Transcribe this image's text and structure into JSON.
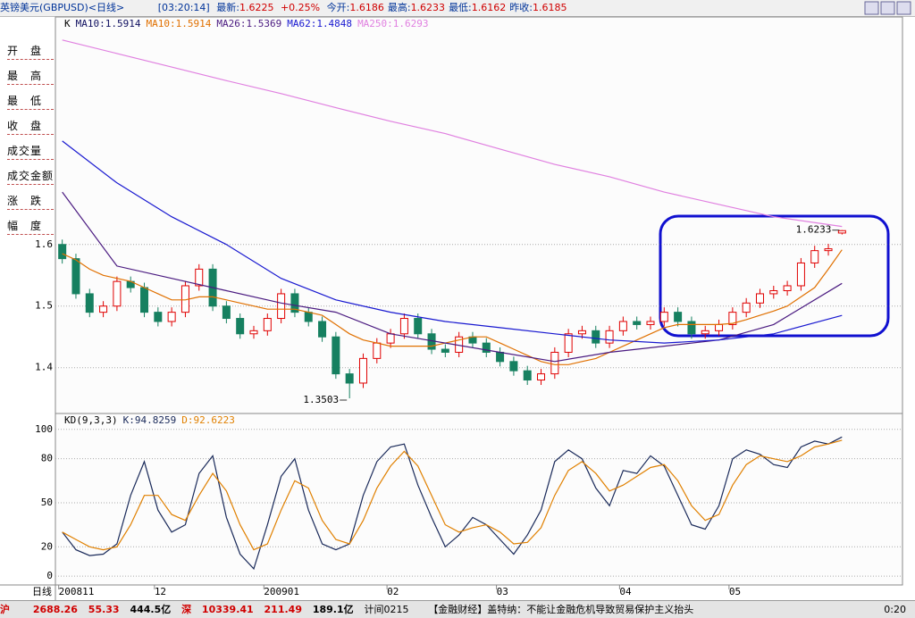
{
  "header": {
    "title": "英镑美元(GBPUSD)<日线>",
    "time": "[03:20:14]",
    "latest_label": "最新:",
    "latest": "1.6225",
    "change": "+0.25%",
    "fields": [
      {
        "label": "今开:",
        "value": "1.6186"
      },
      {
        "label": "最高:",
        "value": "1.6233"
      },
      {
        "label": "最低:",
        "value": "1.6162"
      },
      {
        "label": "昨收:",
        "value": "1.6185"
      }
    ]
  },
  "sidebar": [
    "开　盘",
    "最　高",
    "最　低",
    "收　盘",
    "成交量",
    "成交金额",
    "涨　跌",
    "幅　度"
  ],
  "x_axis_title": "日线",
  "chart_data": [
    {
      "type": "candlestick",
      "legend_items": [
        "K",
        "MA10:1.5914"
      ],
      "legend_colors": [
        "#000000",
        "#101060"
      ],
      "categories": [
        "200811",
        null,
        null,
        null,
        null,
        null,
        null,
        "12",
        null,
        null,
        null,
        null,
        null,
        null,
        null,
        "200901",
        null,
        null,
        null,
        null,
        null,
        null,
        null,
        null,
        "02",
        null,
        null,
        null,
        null,
        null,
        null,
        null,
        "03",
        null,
        null,
        null,
        null,
        null,
        null,
        null,
        null,
        "04",
        null,
        null,
        null,
        null,
        null,
        null,
        null,
        "05",
        null,
        null,
        null,
        null,
        null,
        null,
        null,
        null
      ],
      "open": [
        1.6,
        1.577,
        1.52,
        1.49,
        1.5,
        1.54,
        1.53,
        1.49,
        1.475,
        1.49,
        1.533,
        1.56,
        1.5,
        1.48,
        1.455,
        1.46,
        1.48,
        1.52,
        1.49,
        1.475,
        1.45,
        1.39,
        1.375,
        1.415,
        1.44,
        1.455,
        1.48,
        1.455,
        1.43,
        1.425,
        1.45,
        1.44,
        1.425,
        1.41,
        1.395,
        1.38,
        1.39,
        1.425,
        1.455,
        1.46,
        1.44,
        1.46,
        1.475,
        1.47,
        1.475,
        1.49,
        1.475,
        1.455,
        1.46,
        1.47,
        1.49,
        1.505,
        1.52,
        1.525,
        1.533,
        1.57,
        1.59,
        1.6186
      ],
      "high": [
        1.608,
        1.585,
        1.528,
        1.508,
        1.548,
        1.548,
        1.538,
        1.498,
        1.498,
        1.541,
        1.568,
        1.568,
        1.508,
        1.488,
        1.468,
        1.488,
        1.528,
        1.528,
        1.498,
        1.483,
        1.458,
        1.398,
        1.423,
        1.448,
        1.463,
        1.488,
        1.488,
        1.463,
        1.438,
        1.458,
        1.458,
        1.448,
        1.433,
        1.418,
        1.403,
        1.398,
        1.433,
        1.463,
        1.468,
        1.468,
        1.468,
        1.483,
        1.483,
        1.483,
        1.498,
        1.498,
        1.483,
        1.468,
        1.478,
        1.498,
        1.513,
        1.528,
        1.533,
        1.541,
        1.578,
        1.598,
        1.601,
        1.6233
      ],
      "low": [
        1.569,
        1.512,
        1.482,
        1.482,
        1.492,
        1.522,
        1.482,
        1.467,
        1.467,
        1.482,
        1.525,
        1.492,
        1.472,
        1.447,
        1.447,
        1.452,
        1.472,
        1.482,
        1.467,
        1.442,
        1.382,
        1.3503,
        1.367,
        1.407,
        1.432,
        1.447,
        1.447,
        1.422,
        1.417,
        1.417,
        1.432,
        1.417,
        1.402,
        1.387,
        1.372,
        1.372,
        1.382,
        1.417,
        1.447,
        1.432,
        1.432,
        1.452,
        1.462,
        1.462,
        1.467,
        1.467,
        1.447,
        1.447,
        1.452,
        1.462,
        1.482,
        1.497,
        1.512,
        1.517,
        1.525,
        1.562,
        1.582,
        1.6162
      ],
      "close": [
        1.577,
        1.52,
        1.49,
        1.5,
        1.54,
        1.53,
        1.49,
        1.475,
        1.49,
        1.533,
        1.56,
        1.5,
        1.48,
        1.455,
        1.46,
        1.48,
        1.52,
        1.49,
        1.475,
        1.45,
        1.39,
        1.375,
        1.415,
        1.44,
        1.455,
        1.48,
        1.455,
        1.43,
        1.425,
        1.45,
        1.44,
        1.425,
        1.41,
        1.395,
        1.38,
        1.39,
        1.425,
        1.455,
        1.46,
        1.44,
        1.46,
        1.475,
        1.47,
        1.475,
        1.49,
        1.475,
        1.455,
        1.46,
        1.47,
        1.49,
        1.505,
        1.52,
        1.525,
        1.533,
        1.57,
        1.59,
        1.593,
        1.6225
      ],
      "up_color": "#e00000",
      "down_color": "#168060",
      "series": [
        {
          "name": "MA10:1.5914",
          "color": "#e07000",
          "values": [
            1.585,
            1.575,
            1.56,
            1.55,
            1.545,
            1.54,
            1.53,
            1.52,
            1.51,
            1.51,
            1.515,
            1.515,
            1.51,
            1.505,
            1.5,
            1.495,
            1.495,
            1.495,
            1.49,
            1.485,
            1.47,
            1.455,
            1.445,
            1.44,
            1.435,
            1.435,
            1.435,
            1.435,
            1.44,
            1.445,
            1.45,
            1.45,
            1.44,
            1.43,
            1.42,
            1.41,
            1.405,
            1.405,
            1.41,
            1.415,
            1.425,
            1.435,
            1.445,
            1.455,
            1.465,
            1.47,
            1.47,
            1.47,
            1.47,
            1.472,
            1.478,
            1.485,
            1.492,
            1.5,
            1.515,
            1.53,
            1.56,
            1.5914
          ]
        },
        {
          "name": "MA26:1.5369",
          "color": "#4a1a80",
          "x": [
            0,
            4,
            8,
            12,
            16,
            20,
            24,
            28,
            32,
            36,
            40,
            44,
            48,
            52,
            57
          ],
          "values": [
            1.685,
            1.565,
            1.545,
            1.525,
            1.505,
            1.49,
            1.455,
            1.44,
            1.425,
            1.41,
            1.425,
            1.435,
            1.445,
            1.47,
            1.5369
          ]
        },
        {
          "name": "MA62:1.4848",
          "color": "#1818d0",
          "x": [
            0,
            4,
            8,
            12,
            16,
            20,
            24,
            28,
            32,
            36,
            40,
            44,
            48,
            52,
            57
          ],
          "values": [
            1.768,
            1.7,
            1.645,
            1.6,
            1.545,
            1.51,
            1.49,
            1.475,
            1.465,
            1.455,
            1.445,
            1.44,
            1.445,
            1.455,
            1.4848
          ]
        },
        {
          "name": "MA250:1.6293",
          "color": "#e080e0",
          "x": [
            0,
            4,
            8,
            12,
            16,
            20,
            24,
            28,
            32,
            36,
            40,
            44,
            48,
            52,
            57
          ],
          "values": [
            1.932,
            1.91,
            1.888,
            1.866,
            1.845,
            1.822,
            1.8,
            1.78,
            1.755,
            1.73,
            1.71,
            1.685,
            1.665,
            1.645,
            1.6293
          ]
        }
      ],
      "ylim": [
        1.33,
        1.965
      ],
      "yticks": [
        1.4,
        1.5,
        1.6
      ],
      "grid": true,
      "annotations": [
        {
          "text": "1.6233"
        },
        {
          "text": "1.3503"
        }
      ]
    },
    {
      "type": "line",
      "legend_items": [
        "KD(9,3,3)"
      ],
      "legend_colors": [
        "#000000"
      ],
      "series": [
        {
          "name": "K:94.8259",
          "color": "#1a2a5a",
          "values": [
            30,
            18,
            14,
            15,
            22,
            55,
            78,
            45,
            30,
            35,
            70,
            82,
            40,
            15,
            5,
            35,
            68,
            80,
            45,
            22,
            18,
            22,
            55,
            78,
            88,
            90,
            62,
            40,
            20,
            28,
            40,
            35,
            25,
            15,
            28,
            45,
            78,
            86,
            80,
            60,
            48,
            72,
            70,
            82,
            75,
            55,
            35,
            32,
            48,
            80,
            86,
            83,
            76,
            74,
            88,
            92,
            90,
            94.8259
          ]
        },
        {
          "name": "D:92.6223",
          "color": "#e08000",
          "values": [
            30,
            25,
            20,
            18,
            20,
            35,
            55,
            55,
            42,
            38,
            55,
            70,
            58,
            35,
            18,
            22,
            45,
            65,
            60,
            38,
            25,
            22,
            38,
            60,
            75,
            85,
            75,
            55,
            35,
            30,
            33,
            35,
            30,
            22,
            23,
            33,
            55,
            72,
            78,
            70,
            58,
            62,
            68,
            74,
            76,
            65,
            48,
            38,
            42,
            62,
            76,
            82,
            80,
            78,
            82,
            88,
            90,
            92.6223
          ]
        }
      ],
      "ylim": [
        -6,
        109
      ],
      "yticks": [
        0,
        20,
        50,
        80,
        100
      ],
      "grid": true
    }
  ],
  "footer": {
    "sh_label": "沪",
    "sh_index": "2688.26",
    "sh_change": "55.33",
    "sh_amount": "444.5亿",
    "sz_label": "深",
    "sz_index": "10339.41",
    "sz_change": "211.49",
    "sz_amount": "189.1亿",
    "ticker": "计间0215",
    "news": "【金融财经】盖特纳：不能让金融危机导致贸易保护主义抬头",
    "clock": "0:20"
  }
}
